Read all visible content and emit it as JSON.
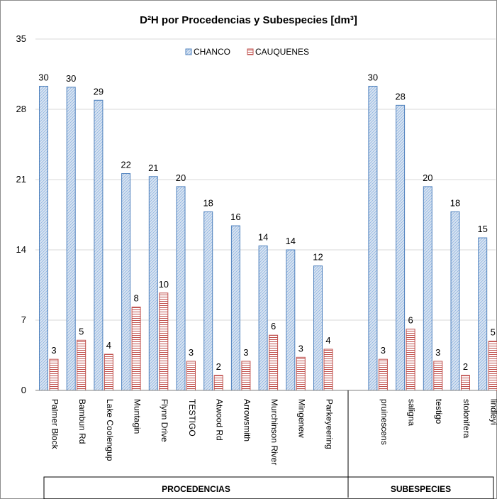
{
  "chart_data": {
    "type": "bar",
    "title": "D²H por Procedencias y Subespecies [dm³]",
    "xlabel": "",
    "ylabel": "",
    "ylim": [
      0,
      35
    ],
    "yticks": [
      0,
      7,
      14,
      21,
      28,
      35
    ],
    "legend": "top-center",
    "groups": [
      {
        "label": "PROCEDENCIAS",
        "categories": [
          "Palmer Block",
          "Bambun Rd",
          "Lake Coolengup",
          "Muntagin",
          "Flynn Drive",
          "TESTIGO",
          "Atwood Rd",
          "Arrowsmith",
          "Murchinson River",
          "Mingenew",
          "Parkeyeering"
        ]
      },
      {
        "label": "SUBESPECIES",
        "categories": [
          "pruinescens",
          "saligna",
          "testigo",
          "stolonifera",
          "lindleyi"
        ]
      }
    ],
    "series": [
      {
        "name": "CHANCO",
        "color": "#4f81bd",
        "values": [
          30.3,
          30.2,
          28.9,
          21.6,
          21.3,
          20.3,
          17.8,
          16.4,
          14.4,
          14.0,
          12.4,
          30.3,
          28.4,
          20.3,
          17.8,
          15.2
        ],
        "labels": [
          "30",
          "30",
          "29",
          "22",
          "21",
          "20",
          "18",
          "16",
          "14",
          "14",
          "12",
          "30",
          "28",
          "20",
          "18",
          "15"
        ]
      },
      {
        "name": "CAUQUENES",
        "color": "#c0504d",
        "values": [
          3.1,
          5.0,
          3.6,
          8.3,
          9.7,
          2.9,
          1.5,
          2.9,
          5.5,
          3.3,
          4.1,
          3.1,
          6.1,
          2.9,
          1.5,
          4.9
        ],
        "labels": [
          "3",
          "5",
          "4",
          "8",
          "10",
          "3",
          "2",
          "3",
          "6",
          "3",
          "4",
          "3",
          "6",
          "3",
          "2",
          "5"
        ]
      }
    ]
  }
}
